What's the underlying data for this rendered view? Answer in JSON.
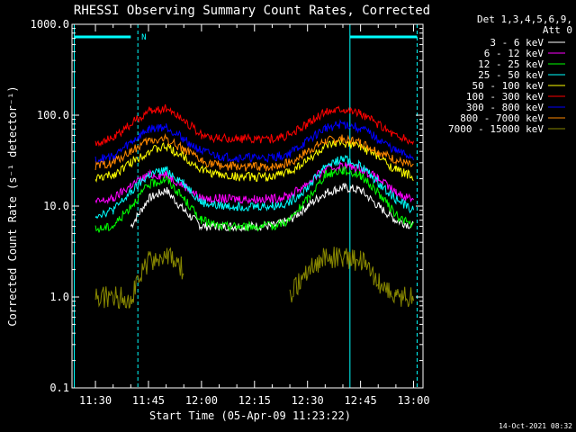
{
  "chart_data": {
    "type": "line",
    "title": "RHESSI Observing Summary Count Rates, Corrected",
    "xlabel": "Start Time (05-Apr-09 11:23:22)",
    "ylabel": "Corrected Count Rate (s⁻¹ detector⁻¹)",
    "y_scale": "log",
    "xlim": [
      "11:23:22",
      "13:02:40"
    ],
    "ylim": [
      0.1,
      1000.0
    ],
    "x_ticks": [
      "11:30",
      "11:45",
      "12:00",
      "12:15",
      "12:30",
      "12:45",
      "13:00"
    ],
    "y_ticks": [
      "0.1",
      "1.0",
      "10.0",
      "100.0",
      "1000.0"
    ],
    "legend_header": [
      "Det 1,3,4,5,6,9,",
      "Att 0"
    ],
    "legend_position": "right",
    "footer": "14-Oct-2021 08:32",
    "night_marker": "N",
    "x": [
      "11:23:22",
      "11:30",
      "11:35",
      "11:40",
      "11:45",
      "11:50",
      "11:55",
      "12:00",
      "12:05",
      "12:10",
      "12:15",
      "12:20",
      "12:25",
      "12:30",
      "12:35",
      "12:40",
      "12:45",
      "12:50",
      "12:55",
      "13:00",
      "13:02:40"
    ],
    "series": [
      {
        "name": "3 - 6 keV",
        "color": "#ffffff",
        "values": [
          null,
          null,
          null,
          6,
          12,
          15,
          9,
          6,
          6,
          6,
          6,
          6,
          7,
          10,
          14,
          16,
          15,
          10,
          7,
          6,
          null
        ]
      },
      {
        "name": "6 - 12 keV",
        "color": "#ff00ff",
        "values": [
          null,
          11,
          12,
          17,
          22,
          22,
          17,
          12,
          12,
          12,
          12,
          12,
          13,
          18,
          25,
          28,
          26,
          20,
          14,
          12,
          null
        ]
      },
      {
        "name": "12 - 25 keV",
        "color": "#00ff00",
        "values": [
          null,
          5.5,
          6,
          10,
          17,
          20,
          12,
          7,
          6,
          6,
          6,
          6,
          7,
          12,
          22,
          25,
          22,
          14,
          8,
          6,
          null
        ]
      },
      {
        "name": "25 - 50 keV",
        "color": "#00ffff",
        "values": [
          null,
          8,
          9,
          14,
          22,
          25,
          18,
          11,
          10,
          10,
          10,
          10,
          11,
          16,
          28,
          33,
          28,
          18,
          12,
          9,
          null
        ]
      },
      {
        "name": "50 - 100 keV",
        "color": "#ffff00",
        "values": [
          null,
          20,
          22,
          30,
          40,
          45,
          35,
          25,
          22,
          21,
          21,
          21,
          24,
          32,
          45,
          50,
          45,
          35,
          25,
          21,
          null
        ]
      },
      {
        "name": "100 - 300 keV",
        "color": "#ff0000",
        "values": [
          null,
          50,
          55,
          80,
          110,
          120,
          90,
          60,
          55,
          55,
          55,
          55,
          60,
          80,
          110,
          120,
          105,
          80,
          60,
          50,
          null
        ]
      },
      {
        "name": "300 - 800 keV",
        "color": "#0000ff",
        "values": [
          null,
          32,
          35,
          50,
          70,
          75,
          55,
          40,
          35,
          34,
          34,
          34,
          38,
          52,
          72,
          80,
          72,
          55,
          40,
          34,
          null
        ]
      },
      {
        "name": "800 - 7000 keV",
        "color": "#ff8800",
        "values": [
          null,
          27,
          30,
          40,
          52,
          55,
          42,
          31,
          28,
          27,
          27,
          27,
          30,
          40,
          52,
          55,
          50,
          40,
          32,
          27,
          null
        ]
      },
      {
        "name": "7000 - 15000 keV",
        "color": "#888800",
        "values": [
          null,
          1.0,
          1.0,
          1.0,
          2.5,
          2.8,
          2.0,
          null,
          null,
          null,
          null,
          null,
          1.0,
          2.0,
          2.7,
          2.8,
          2.5,
          1.5,
          1.0,
          1.0,
          null
        ]
      }
    ]
  }
}
